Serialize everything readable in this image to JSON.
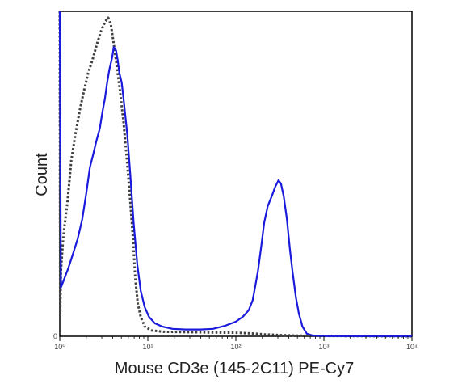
{
  "chart_data": {
    "type": "line",
    "title": "",
    "xlabel": "Mouse CD3e (145-2C11) PE-Cy7",
    "ylabel": "Count",
    "x_scale": "log",
    "xlim": [
      1,
      10000
    ],
    "ylim": [
      0,
      100
    ],
    "x_tick_labels": [
      "10⁰",
      "10¹",
      "10²",
      "10³",
      "10⁴"
    ],
    "y_tick_labels": [
      "0"
    ],
    "grid": false,
    "series": [
      {
        "style": "dotted",
        "color": "#404040",
        "points": [
          [
            1.0,
            100
          ],
          [
            1.01,
            6
          ],
          [
            1.03,
            20
          ],
          [
            1.08,
            28
          ],
          [
            1.12,
            33
          ],
          [
            1.22,
            41
          ],
          [
            1.35,
            54
          ],
          [
            1.5,
            62
          ],
          [
            1.7,
            70
          ],
          [
            1.9,
            76
          ],
          [
            2.1,
            81
          ],
          [
            2.35,
            85
          ],
          [
            2.65,
            90
          ],
          [
            2.95,
            94
          ],
          [
            3.3,
            97
          ],
          [
            3.55,
            98
          ],
          [
            3.8,
            96
          ],
          [
            4.1,
            90
          ],
          [
            4.4,
            84
          ],
          [
            4.8,
            76
          ],
          [
            5.3,
            66
          ],
          [
            5.8,
            54
          ],
          [
            6.3,
            42
          ],
          [
            6.8,
            30
          ],
          [
            7.2,
            18
          ],
          [
            7.7,
            10
          ],
          [
            8.3,
            6
          ],
          [
            9.2,
            3
          ],
          [
            11,
            1.8
          ],
          [
            15,
            1.4
          ],
          [
            25,
            1.3
          ],
          [
            50,
            1.2
          ],
          [
            100,
            1.1
          ],
          [
            150,
            0.9
          ],
          [
            210,
            0.6
          ],
          [
            300,
            0.4
          ],
          [
            500,
            0.2
          ],
          [
            1000,
            0.1
          ],
          [
            10000,
            0
          ]
        ]
      },
      {
        "style": "solid",
        "color": "#1a1adc",
        "points": [
          [
            1.0,
            100
          ],
          [
            1.03,
            15
          ],
          [
            1.1,
            17
          ],
          [
            1.25,
            21
          ],
          [
            1.4,
            25
          ],
          [
            1.6,
            30
          ],
          [
            1.8,
            36
          ],
          [
            2.0,
            44
          ],
          [
            2.2,
            52
          ],
          [
            2.4,
            56
          ],
          [
            2.6,
            60
          ],
          [
            2.85,
            64
          ],
          [
            3.05,
            69
          ],
          [
            3.25,
            73
          ],
          [
            3.45,
            78
          ],
          [
            3.65,
            82
          ],
          [
            3.8,
            84
          ],
          [
            3.95,
            86
          ],
          [
            4.1,
            89
          ],
          [
            4.35,
            88
          ],
          [
            4.55,
            85
          ],
          [
            4.75,
            81
          ],
          [
            5.05,
            78
          ],
          [
            5.35,
            72
          ],
          [
            5.85,
            62
          ],
          [
            6.35,
            49
          ],
          [
            6.9,
            35
          ],
          [
            7.6,
            22
          ],
          [
            8.3,
            14
          ],
          [
            9.2,
            9
          ],
          [
            10.3,
            6
          ],
          [
            12,
            4
          ],
          [
            14.5,
            3
          ],
          [
            19,
            2.3
          ],
          [
            27,
            2.1
          ],
          [
            40,
            2.1
          ],
          [
            55,
            2.3
          ],
          [
            75,
            3.2
          ],
          [
            100,
            4.5
          ],
          [
            120,
            6
          ],
          [
            140,
            8
          ],
          [
            155,
            11
          ],
          [
            165,
            15
          ],
          [
            178,
            20
          ],
          [
            195,
            28
          ],
          [
            210,
            35
          ],
          [
            230,
            40
          ],
          [
            255,
            43
          ],
          [
            280,
            46
          ],
          [
            305,
            48
          ],
          [
            325,
            47
          ],
          [
            350,
            43
          ],
          [
            380,
            36
          ],
          [
            410,
            27
          ],
          [
            440,
            20
          ],
          [
            480,
            12
          ],
          [
            520,
            7
          ],
          [
            570,
            3
          ],
          [
            640,
            0.8
          ],
          [
            750,
            0.2
          ],
          [
            1000,
            0.05
          ],
          [
            10000,
            0
          ]
        ]
      }
    ]
  }
}
